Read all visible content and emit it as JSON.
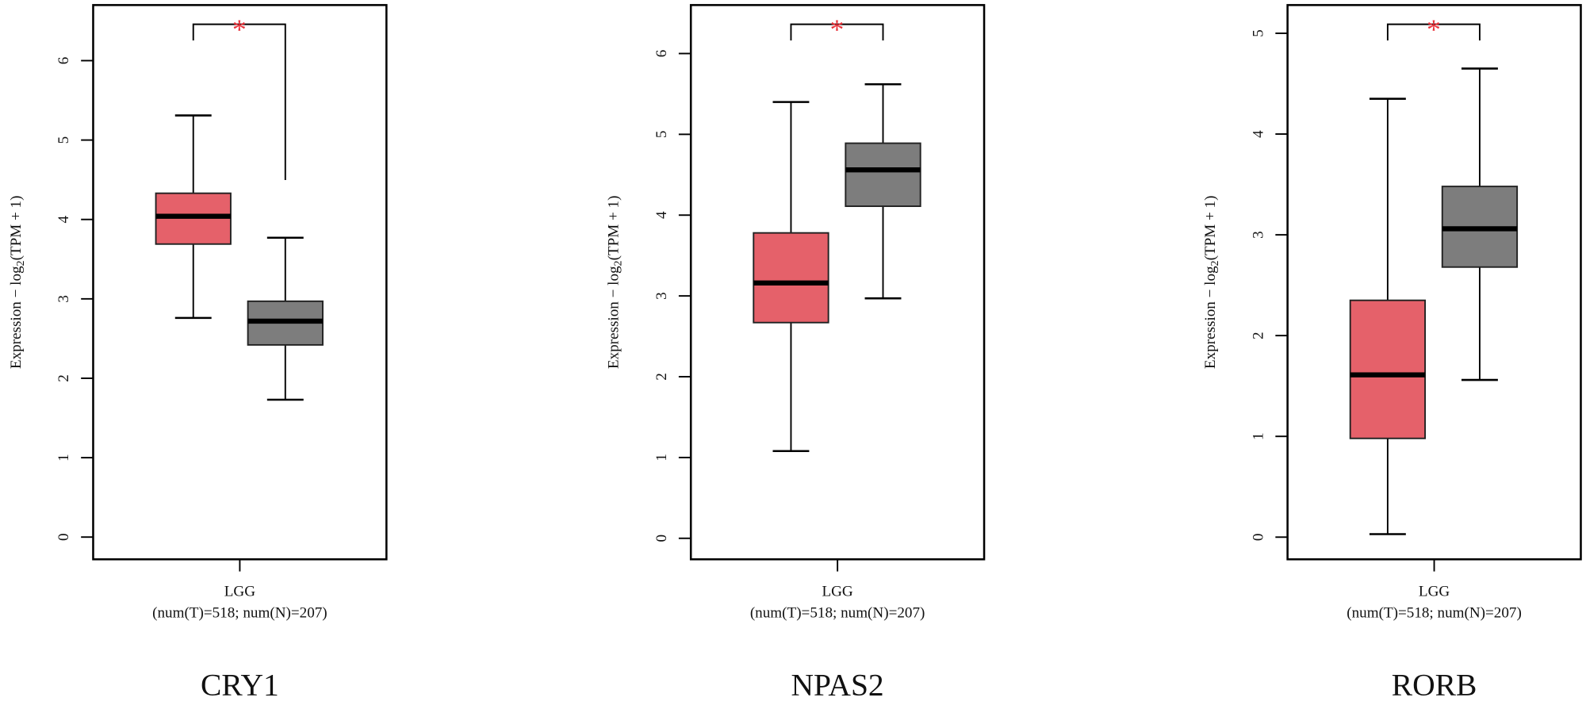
{
  "chart_data": [
    {
      "type": "box",
      "title": "CRY1",
      "category": "LGG",
      "subtitle": "(num(T)=518; num(N)=207)",
      "ylabel": {
        "text": "Expression − log",
        "subscript": "2",
        "suffix": "(TPM + 1)"
      },
      "significance": "*",
      "ylim": [
        -0.28,
        6.7
      ],
      "yticks": [
        0,
        1,
        2,
        3,
        4,
        5,
        6
      ],
      "boxes": [
        {
          "color": "#e5616a",
          "whisker_low": 2.76,
          "q1": 3.69,
          "median": 4.04,
          "q3": 4.33,
          "whisker_high": 5.31
        },
        {
          "color": "#7d7d7d",
          "whisker_low": 1.73,
          "q1": 2.42,
          "median": 2.72,
          "q3": 2.97,
          "whisker_high": 3.77
        }
      ]
    },
    {
      "type": "box",
      "title": "NPAS2",
      "category": "LGG",
      "subtitle": "(num(T)=518; num(N)=207)",
      "ylabel": {
        "text": "Expression − log",
        "subscript": "2",
        "suffix": "(TPM + 1)"
      },
      "significance": "*",
      "ylim": [
        -0.26,
        6.6
      ],
      "yticks": [
        0,
        1,
        2,
        3,
        4,
        5,
        6
      ],
      "boxes": [
        {
          "color": "#e5616a",
          "whisker_low": 1.08,
          "q1": 2.67,
          "median": 3.16,
          "q3": 3.78,
          "whisker_high": 5.4
        },
        {
          "color": "#7d7d7d",
          "whisker_low": 2.97,
          "q1": 4.11,
          "median": 4.56,
          "q3": 4.89,
          "whisker_high": 5.62
        }
      ]
    },
    {
      "type": "box",
      "title": "RORB",
      "category": "LGG",
      "subtitle": "(num(T)=518; num(N)=207)",
      "ylabel": {
        "text": "Expression − log",
        "subscript": "2",
        "suffix": "(TPM + 1)"
      },
      "significance": "*",
      "ylim": [
        -0.22,
        5.28
      ],
      "yticks": [
        0,
        1,
        2,
        3,
        4,
        5
      ],
      "boxes": [
        {
          "color": "#e5616a",
          "whisker_low": 0.03,
          "q1": 0.98,
          "median": 1.61,
          "q3": 2.35,
          "whisker_high": 4.35
        },
        {
          "color": "#7d7d7d",
          "whisker_low": 1.56,
          "q1": 2.68,
          "median": 3.06,
          "q3": 3.48,
          "whisker_high": 4.65
        }
      ]
    }
  ]
}
